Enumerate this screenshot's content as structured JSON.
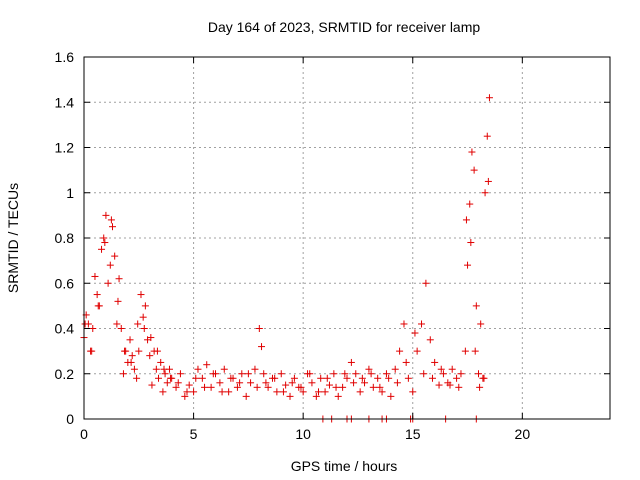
{
  "chart_data": {
    "type": "scatter",
    "title": "Day 164 of 2023, SRMTID for receiver lamp",
    "xlabel": "GPS time / hours",
    "ylabel": "SRMTID / TECUs",
    "xlim": [
      0,
      24
    ],
    "ylim": [
      0,
      1.6
    ],
    "xticks": [
      "0",
      "5",
      "10",
      "15",
      "20"
    ],
    "xtick_values": [
      0,
      5,
      10,
      15,
      20
    ],
    "yticks": [
      "0",
      "0.2",
      "0.4",
      "0.6",
      "0.8",
      "1",
      "1.2",
      "1.4",
      "1.6"
    ],
    "ytick_values": [
      0,
      0.2,
      0.4,
      0.6,
      0.8,
      1.0,
      1.2,
      1.4,
      1.6
    ],
    "grid": true,
    "marker": "+",
    "color": "#e00000",
    "series": [
      {
        "name": "SRMTID",
        "x": [
          0.0,
          0.1,
          0.2,
          0.3,
          0.4,
          0.5,
          0.6,
          0.7,
          0.8,
          0.9,
          1.0,
          1.1,
          1.2,
          1.3,
          1.4,
          1.5,
          1.6,
          1.7,
          1.8,
          1.9,
          2.0,
          2.1,
          2.2,
          2.3,
          2.4,
          2.5,
          2.6,
          2.7,
          2.8,
          2.9,
          3.0,
          3.1,
          3.2,
          3.3,
          3.4,
          3.5,
          3.6,
          3.7,
          3.8,
          3.9,
          4.0,
          4.2,
          4.4,
          4.6,
          4.8,
          5.0,
          5.2,
          5.4,
          5.6,
          5.8,
          6.0,
          6.2,
          6.4,
          6.6,
          6.8,
          7.0,
          7.2,
          7.4,
          7.6,
          7.8,
          8.0,
          8.1,
          8.2,
          8.4,
          8.6,
          8.8,
          9.0,
          9.2,
          9.4,
          9.6,
          9.8,
          10.0,
          10.2,
          10.4,
          10.6,
          10.8,
          11.0,
          11.2,
          11.4,
          11.6,
          11.8,
          12.0,
          12.2,
          12.4,
          12.6,
          12.8,
          13.0,
          13.2,
          13.4,
          13.6,
          13.8,
          14.0,
          14.2,
          14.4,
          14.6,
          14.8,
          15.0,
          15.2,
          15.4,
          15.6,
          15.8,
          16.0,
          16.2,
          16.4,
          16.6,
          16.8,
          17.0,
          17.2,
          17.4,
          17.5,
          17.6,
          17.7,
          17.8,
          17.9,
          18.0,
          18.1,
          18.2,
          18.3,
          18.4,
          18.5,
          0.05,
          0.35,
          0.65,
          0.95,
          1.25,
          1.55,
          1.85,
          2.15,
          2.45,
          2.75,
          3.05,
          3.35,
          3.65,
          3.95,
          4.3,
          4.7,
          5.1,
          5.5,
          5.9,
          6.3,
          6.7,
          7.1,
          7.5,
          7.9,
          8.3,
          8.7,
          9.1,
          9.5,
          9.9,
          10.3,
          10.7,
          11.1,
          11.5,
          11.9,
          12.3,
          12.7,
          13.1,
          13.5,
          13.9,
          14.3,
          14.7,
          15.1,
          15.5,
          15.9,
          16.3,
          16.7,
          17.1,
          17.45,
          17.65,
          17.85,
          18.05,
          18.25,
          18.45,
          10.9,
          11.3,
          12.0,
          12.2,
          13.0,
          13.6,
          13.8,
          14.9,
          15.0,
          16.5,
          17.9
        ],
        "y": [
          0.36,
          0.46,
          0.42,
          0.3,
          0.4,
          0.63,
          0.55,
          0.5,
          0.75,
          0.8,
          0.9,
          0.6,
          0.68,
          0.85,
          0.72,
          0.42,
          0.62,
          0.4,
          0.2,
          0.3,
          0.25,
          0.35,
          0.28,
          0.22,
          0.18,
          0.3,
          0.55,
          0.45,
          0.5,
          0.35,
          0.28,
          0.15,
          0.3,
          0.22,
          0.18,
          0.25,
          0.12,
          0.2,
          0.16,
          0.22,
          0.18,
          0.14,
          0.2,
          0.1,
          0.15,
          0.12,
          0.22,
          0.18,
          0.24,
          0.14,
          0.2,
          0.16,
          0.22,
          0.12,
          0.18,
          0.14,
          0.2,
          0.1,
          0.16,
          0.22,
          0.4,
          0.32,
          0.2,
          0.14,
          0.18,
          0.12,
          0.2,
          0.15,
          0.1,
          0.18,
          0.14,
          0.12,
          0.2,
          0.16,
          0.1,
          0.18,
          0.12,
          0.15,
          0.2,
          0.1,
          0.14,
          0.18,
          0.25,
          0.2,
          0.12,
          0.16,
          0.22,
          0.14,
          0.18,
          0.12,
          0.2,
          0.1,
          0.22,
          0.3,
          0.42,
          0.18,
          0.12,
          0.3,
          0.42,
          0.6,
          0.35,
          0.25,
          0.15,
          0.2,
          0.16,
          0.22,
          0.18,
          0.2,
          0.3,
          0.68,
          0.95,
          1.18,
          1.1,
          0.5,
          0.2,
          0.42,
          0.18,
          1.0,
          1.25,
          1.42,
          0.42,
          0.3,
          0.5,
          0.78,
          0.88,
          0.52,
          0.3,
          0.25,
          0.42,
          0.4,
          0.36,
          0.3,
          0.22,
          0.18,
          0.16,
          0.12,
          0.18,
          0.14,
          0.2,
          0.12,
          0.18,
          0.16,
          0.2,
          0.14,
          0.16,
          0.18,
          0.12,
          0.16,
          0.14,
          0.2,
          0.12,
          0.18,
          0.14,
          0.2,
          0.16,
          0.18,
          0.2,
          0.14,
          0.18,
          0.16,
          0.25,
          0.38,
          0.2,
          0.18,
          0.22,
          0.15,
          0.14,
          0.88,
          0.78,
          0.3,
          0.14,
          0.18,
          1.05,
          0.0,
          0.0,
          0.0,
          0.0,
          0.0,
          0.0,
          0.0,
          0.0,
          0.0,
          0.0,
          0.0
        ]
      }
    ]
  }
}
